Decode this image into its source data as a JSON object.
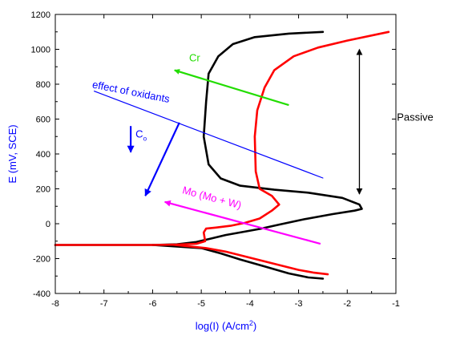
{
  "chart_data": {
    "type": "line",
    "title": "",
    "xlabel": "log(I) (A/cm",
    "xlabel_sup": "2",
    "xlabel_close": ")",
    "ylabel": "E (mV, SCE)",
    "xlim": [
      -8,
      -1
    ],
    "ylim": [
      -400,
      1200
    ],
    "x_ticks": [
      "-8",
      "-7",
      "-6",
      "-5",
      "-4",
      "-3",
      "-2",
      "-1"
    ],
    "y_ticks": [
      "-400",
      "-200",
      "0",
      "200",
      "400",
      "600",
      "800",
      "1000",
      "1200"
    ],
    "series": [
      {
        "color": "#000000",
        "points": [
          [
            -8.0,
            -122
          ],
          [
            -7.0,
            -122
          ],
          [
            -6.0,
            -122
          ],
          [
            -5.5,
            -118
          ],
          [
            -5.1,
            -105
          ],
          [
            -4.8,
            -85
          ],
          [
            -4.5,
            -65
          ],
          [
            -4.2,
            -50
          ],
          [
            -3.8,
            -30
          ],
          [
            -3.4,
            -5
          ],
          [
            -2.9,
            25
          ],
          [
            -2.3,
            55
          ],
          [
            -1.85,
            75
          ],
          [
            -1.7,
            85
          ],
          [
            -1.75,
            110
          ],
          [
            -2.1,
            148
          ],
          [
            -2.8,
            178
          ],
          [
            -3.5,
            195
          ],
          [
            -4.2,
            218
          ],
          [
            -4.6,
            260
          ],
          [
            -4.85,
            340
          ],
          [
            -4.95,
            500
          ],
          [
            -4.9,
            700
          ],
          [
            -4.85,
            860
          ],
          [
            -4.65,
            960
          ],
          [
            -4.35,
            1030
          ],
          [
            -3.9,
            1070
          ],
          [
            -3.2,
            1090
          ],
          [
            -2.5,
            1100
          ]
        ]
      },
      {
        "color": "#000000",
        "points": [
          [
            -6.0,
            -122
          ],
          [
            -5.0,
            -140
          ],
          [
            -4.6,
            -170
          ],
          [
            -4.2,
            -205
          ],
          [
            -3.7,
            -245
          ],
          [
            -3.2,
            -285
          ],
          [
            -2.8,
            -308
          ],
          [
            -2.5,
            -315
          ]
        ]
      },
      {
        "color": "#ff0000",
        "points": [
          [
            -8.0,
            -122
          ],
          [
            -7.0,
            -122
          ],
          [
            -6.0,
            -122
          ],
          [
            -5.5,
            -120
          ],
          [
            -5.1,
            -115
          ],
          [
            -4.92,
            -100
          ],
          [
            -4.95,
            -50
          ],
          [
            -4.9,
            -28
          ],
          [
            -4.7,
            -22
          ],
          [
            -4.4,
            -12
          ],
          [
            -4.1,
            5
          ],
          [
            -3.8,
            30
          ],
          [
            -3.55,
            75
          ],
          [
            -3.4,
            110
          ],
          [
            -3.55,
            160
          ],
          [
            -3.8,
            200
          ],
          [
            -3.88,
            300
          ],
          [
            -3.9,
            500
          ],
          [
            -3.85,
            650
          ],
          [
            -3.7,
            780
          ],
          [
            -3.5,
            880
          ],
          [
            -3.1,
            960
          ],
          [
            -2.6,
            1010
          ],
          [
            -2.0,
            1050
          ],
          [
            -1.15,
            1100
          ]
        ]
      },
      {
        "color": "#ff0000",
        "points": [
          [
            -5.6,
            -120
          ],
          [
            -4.9,
            -140
          ],
          [
            -4.5,
            -160
          ],
          [
            -4.0,
            -195
          ],
          [
            -3.5,
            -230
          ],
          [
            -3.0,
            -265
          ],
          [
            -2.7,
            -280
          ],
          [
            -2.4,
            -290
          ]
        ]
      },
      {
        "color": "#0000ff",
        "points": [
          [
            -7.2,
            760
          ],
          [
            -2.5,
            262
          ]
        ]
      }
    ],
    "annotations": [
      {
        "text": "Cr",
        "color": "#22dd00",
        "x": -5.25,
        "y": 930,
        "arrow": {
          "from": [
            -3.2,
            680
          ],
          "to": [
            -5.55,
            880
          ]
        }
      },
      {
        "text": "effect of oxidants",
        "color": "#0000ff",
        "x": -7.25,
        "y": 780,
        "rotate": 11
      },
      {
        "text": "C",
        "sub": "o",
        "color": "#0000ff",
        "x": -6.35,
        "y": 495,
        "arrow": {
          "from": [
            -6.45,
            560
          ],
          "to": [
            -6.45,
            410
          ]
        }
      },
      {
        "text": "",
        "color": "#0000ff",
        "arrow": {
          "from": [
            -5.45,
            580
          ],
          "to": [
            -6.15,
            160
          ]
        }
      },
      {
        "text": "Mo (Mo + W)",
        "color": "#ff00ff",
        "x": -5.4,
        "y": 175,
        "rotate": 15
      },
      {
        "text": "",
        "color": "#ff00ff",
        "arrow": {
          "from": [
            -2.55,
            -115
          ],
          "to": [
            -5.75,
            125
          ]
        }
      },
      {
        "text": "Passive",
        "color": "#000000",
        "x": -0.98,
        "y": 590,
        "double_arrow": {
          "x": -1.75,
          "from": 1000,
          "to": 170
        }
      }
    ]
  }
}
